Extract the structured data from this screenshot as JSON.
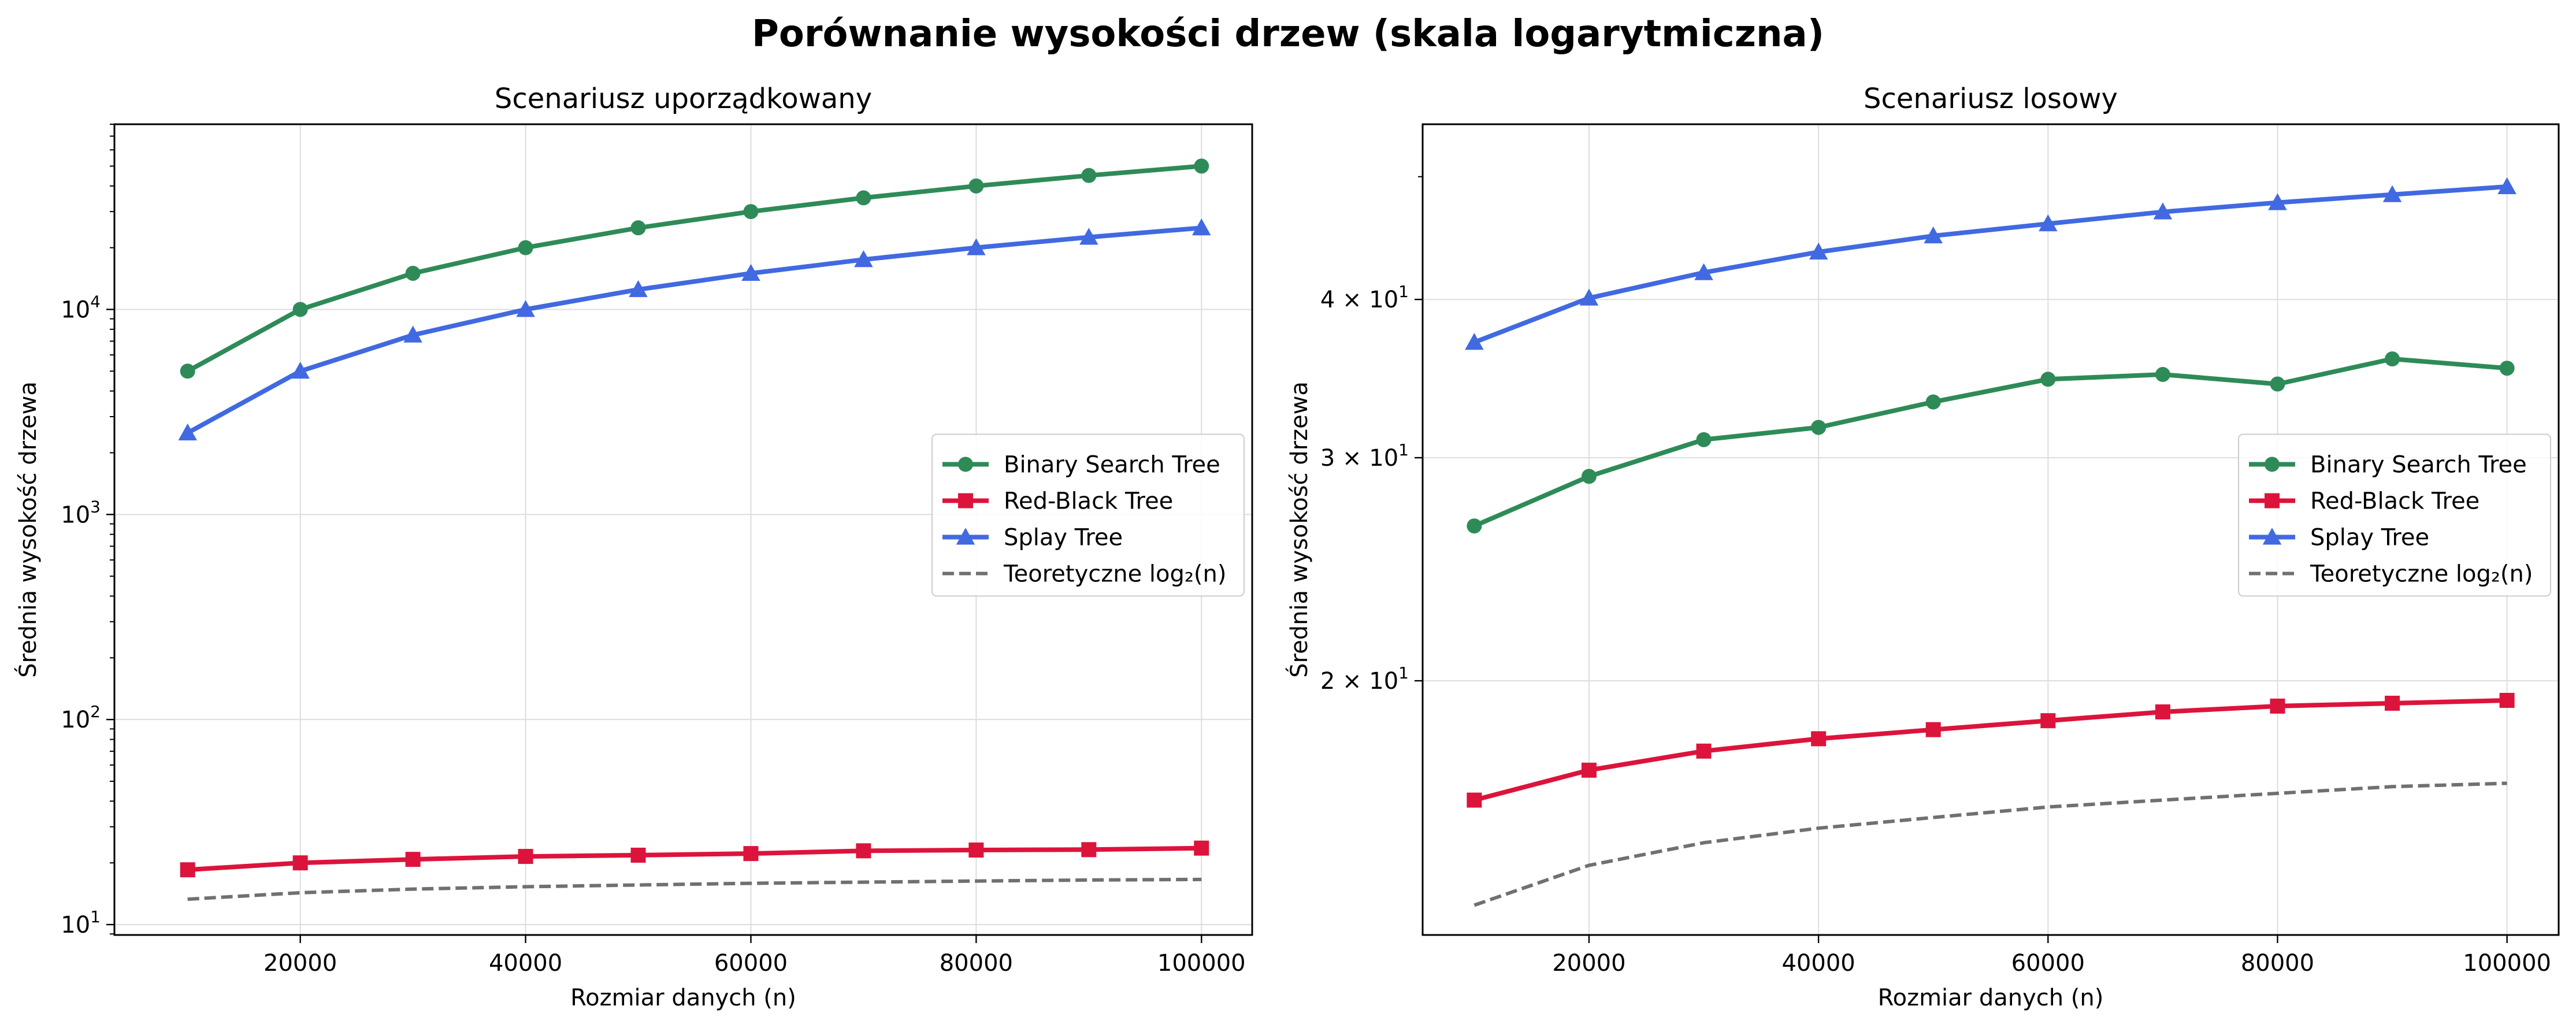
{
  "suptitle": "Porównanie wysokości drzew (skala logarytmiczna)",
  "chart_data": [
    {
      "type": "line",
      "title": "Scenariusz uporządkowany",
      "xlabel": "Rozmiar danych (n)",
      "ylabel": "Średnia wysokość drzewa",
      "yscale": "log",
      "xlim": [
        3500,
        104500
      ],
      "ylim": [
        8.9,
        80000
      ],
      "xticks": [
        20000,
        40000,
        60000,
        80000,
        100000
      ],
      "xtick_labels": [
        "20000",
        "40000",
        "60000",
        "80000",
        "100000"
      ],
      "yticks": [
        {
          "value": 10,
          "base": "10",
          "exp": "1"
        },
        {
          "value": 100,
          "base": "10",
          "exp": "2"
        },
        {
          "value": 1000,
          "base": "10",
          "exp": "3"
        },
        {
          "value": 10000,
          "base": "10",
          "exp": "4"
        }
      ],
      "grid": true,
      "legend_position": "center-right",
      "x": [
        10000,
        20000,
        30000,
        40000,
        50000,
        60000,
        70000,
        80000,
        90000,
        100000
      ],
      "series": [
        {
          "name": "Binary Search Tree",
          "color": "#2e8b57",
          "marker": "circle",
          "dashed": false,
          "values": [
            5000,
            10000,
            15000,
            20000,
            25000,
            30000,
            35000,
            40000,
            45000,
            50000
          ]
        },
        {
          "name": "Red-Black Tree",
          "color": "#dc143c",
          "marker": "square",
          "dashed": false,
          "values": [
            18.5,
            20.0,
            20.8,
            21.5,
            21.8,
            22.2,
            22.9,
            23.1,
            23.2,
            23.6
          ]
        },
        {
          "name": "Splay Tree",
          "color": "#4169e1",
          "marker": "triangle",
          "dashed": false,
          "values": [
            2500,
            5000,
            7500,
            10000,
            12500,
            15000,
            17500,
            20000,
            22500,
            25000
          ]
        },
        {
          "name": "Teoretyczne log₂(n)",
          "color": "#707070",
          "marker": "none",
          "dashed": true,
          "values": [
            13.3,
            14.3,
            14.9,
            15.3,
            15.6,
            15.9,
            16.1,
            16.3,
            16.5,
            16.6
          ]
        }
      ]
    },
    {
      "type": "line",
      "title": "Scenariusz losowy",
      "xlabel": "Rozmiar danych (n)",
      "ylabel": "Średnia wysokość drzewa",
      "yscale": "log",
      "xlim": [
        5500,
        104500
      ],
      "ylim": [
        12.6,
        55
      ],
      "xticks": [
        20000,
        40000,
        60000,
        80000,
        100000
      ],
      "xtick_labels": [
        "20000",
        "40000",
        "60000",
        "80000",
        "100000"
      ],
      "yticks": [
        {
          "value": 20,
          "base": "2 × 10",
          "exp": "1"
        },
        {
          "value": 30,
          "base": "3 × 10",
          "exp": "1"
        },
        {
          "value": 40,
          "base": "4 × 10",
          "exp": "1"
        }
      ],
      "grid": true,
      "legend_position": "center-right",
      "x": [
        10000,
        20000,
        30000,
        40000,
        50000,
        60000,
        70000,
        80000,
        90000,
        100000
      ],
      "series": [
        {
          "name": "Binary Search Tree",
          "color": "#2e8b57",
          "marker": "circle",
          "dashed": false,
          "values": [
            26.5,
            29.0,
            31.0,
            31.7,
            33.2,
            34.6,
            34.9,
            34.3,
            35.9,
            35.3
          ]
        },
        {
          "name": "Red-Black Tree",
          "color": "#dc143c",
          "marker": "square",
          "dashed": false,
          "values": [
            16.1,
            17.0,
            17.6,
            18.0,
            18.3,
            18.6,
            18.9,
            19.1,
            19.2,
            19.3
          ]
        },
        {
          "name": "Splay Tree",
          "color": "#4169e1",
          "marker": "triangle",
          "dashed": false,
          "values": [
            37.0,
            40.1,
            42.0,
            43.6,
            44.9,
            45.9,
            46.9,
            47.7,
            48.4,
            49.1
          ]
        },
        {
          "name": "Teoretyczne log₂(n)",
          "color": "#707070",
          "marker": "none",
          "dashed": true,
          "values": [
            13.3,
            14.3,
            14.9,
            15.3,
            15.6,
            15.9,
            16.1,
            16.3,
            16.5,
            16.6
          ]
        }
      ]
    }
  ]
}
